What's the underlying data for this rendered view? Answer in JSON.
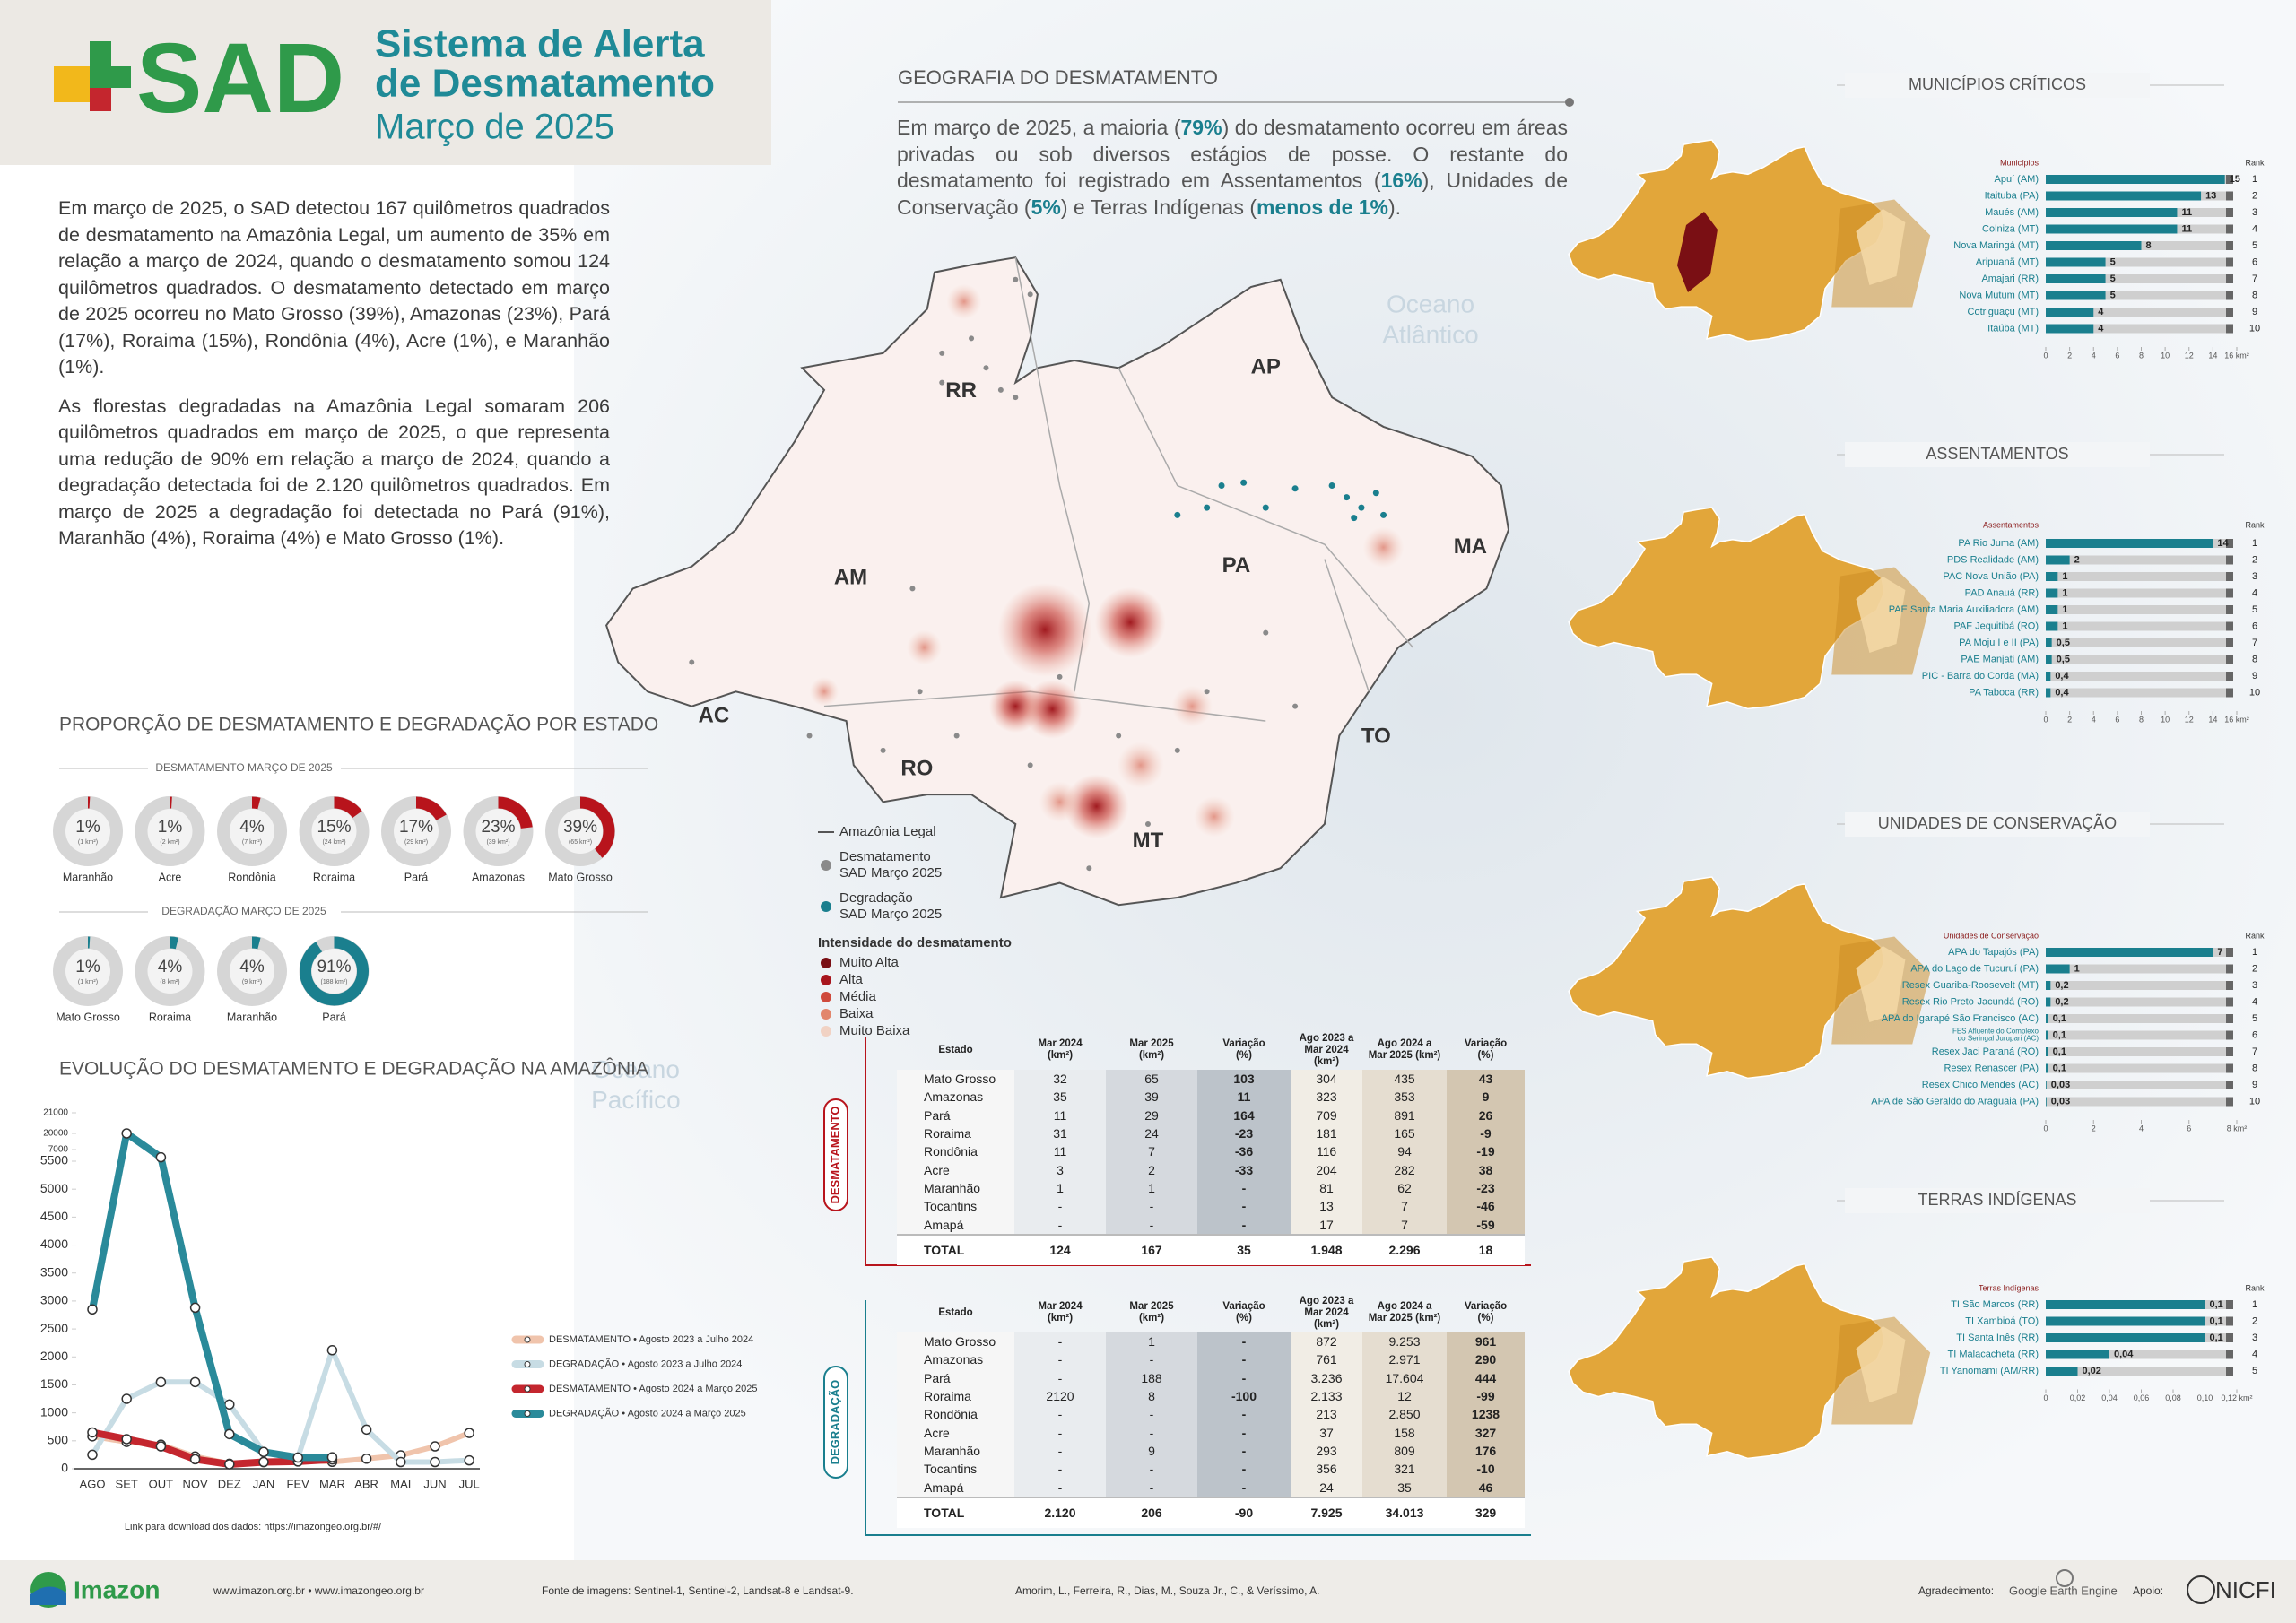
{
  "header": {
    "logo": "SAD",
    "title": [
      "Sistema de Alerta",
      "de Desmatamento"
    ],
    "subtitle": "Março de 2025"
  },
  "intro": [
    "Em março de 2025, o SAD detectou 167 quilômetros quadrados de desmatamento na Amazônia Legal, um aumento de 35% em relação a março de 2024, quando o desmatamento somou 124 quilômetros quadrados. O desmatamento detectado em março de 2025 ocorreu no Mato Grosso (39%), Amazonas (23%), Pará (17%), Roraima (15%), Rondônia (4%), Acre (1%), e Maranhão (1%).",
    "As florestas degradadas na Amazônia Legal somaram 206 quilômetros quadrados em março de 2025, o que representa uma redução de 90% em relação a março de 2024, quando a degradação detectada foi de 2.120 quilômetros quadrados. Em março de 2025 a degradação foi detectada no Pará (91%), Maranhão (4%), Roraima (4%) e Mato Grosso (1%)."
  ],
  "geography": {
    "title": "GEOGRAFIA DO DESMATAMENTO",
    "runs": [
      {
        "text": "Em março de 2025, a maioria (",
        "strong": false
      },
      {
        "text": "79%",
        "strong": true
      },
      {
        "text": ") do desmatamento ocorreu em áreas privadas ou sob diversos estágios de posse. O restante do desmatamento foi registrado em Assentamentos (",
        "strong": false
      },
      {
        "text": "16%",
        "strong": true
      },
      {
        "text": "), Unidades de Conservação (",
        "strong": false
      },
      {
        "text": "5%",
        "strong": true
      },
      {
        "text": ") e Terras Indígenas (",
        "strong": false
      },
      {
        "text": "menos de 1%",
        "strong": true
      },
      {
        "text": ").",
        "strong": false
      }
    ]
  },
  "map": {
    "states": [
      "RR",
      "AP",
      "AM",
      "PA",
      "MA",
      "AC",
      "RO",
      "TO",
      "MT"
    ],
    "oceans": [
      [
        "Oceano",
        "Atlântico"
      ],
      [
        "Oceano",
        "Pacífico"
      ]
    ],
    "layers": [
      {
        "label": [
          "Amazônia Legal"
        ],
        "symbol": "line",
        "color": "#555555"
      },
      {
        "label": [
          "Desmatamento",
          "SAD Março 2025"
        ],
        "symbol": "dot",
        "color": "#8a8a8a"
      },
      {
        "label": [
          "Degradação",
          "SAD Março 2025"
        ],
        "symbol": "dot",
        "color": "#1a7f8e"
      }
    ],
    "intensity_title": "Intensidade do desmatamento",
    "intensity": [
      {
        "label": "Muito Alta",
        "color": "#7a0f14"
      },
      {
        "label": "Alta",
        "color": "#a8161d"
      },
      {
        "label": "Média",
        "color": "#cf4a3c"
      },
      {
        "label": "Baixa",
        "color": "#e2866c"
      },
      {
        "label": "Muito Baixa",
        "color": "#f1d2c4"
      }
    ]
  },
  "proportion": {
    "title": "PROPORÇÃO DE DESMATAMENTO E DEGRADAÇÃO POR ESTADO",
    "groups": [
      {
        "title": "DESMATAMENTO MARÇO DE 2025",
        "color": "#b8141c",
        "states": [
          "Maranhão",
          "Acre",
          "Rondônia",
          "Roraima",
          "Pará",
          "Amazonas",
          "Mato Grosso"
        ],
        "values": [
          1,
          1,
          4,
          15,
          17,
          23,
          39
        ],
        "value_labels": [
          "1%",
          "1%",
          "4%",
          "15%",
          "17%",
          "23%",
          "39%"
        ],
        "area_labels": [
          "(1 km²)",
          "(2 km²)",
          "(7 km²)",
          "(24 km²)",
          "(29 km²)",
          "(39 km²)",
          "(65 km²)"
        ]
      },
      {
        "title": "DEGRADAÇÃO MARÇO DE 2025",
        "color": "#1a7f8e",
        "states": [
          "Mato Grosso",
          "Roraima",
          "Maranhão",
          "Pará"
        ],
        "values": [
          1,
          4,
          4,
          91
        ],
        "value_labels": [
          "1%",
          "4%",
          "4%",
          "91%"
        ],
        "area_labels": [
          "(1 km²)",
          "(8 km²)",
          "(9 km²)",
          "(188 km²)"
        ]
      }
    ]
  },
  "chart_data": {
    "type": "line",
    "title": "EVOLUÇÃO DO DESMATAMENTO E DEGRADAÇÃO NA AMAZÔNIA",
    "categories": [
      "AGO",
      "SET",
      "OUT",
      "NOV",
      "DEZ",
      "JAN",
      "FEV",
      "MAR",
      "ABR",
      "MAI",
      "JUN",
      "JUL"
    ],
    "series": [
      {
        "name": "DESMATAMENTO • Agosto 2023 a Julho 2024",
        "color": "#f0c4ac",
        "values": [
          580,
          480,
          430,
          220,
          90,
          120,
          160,
          124,
          180,
          240,
          400,
          640
        ]
      },
      {
        "name": "DEGRADAÇÃO • Agosto 2023 a Julho 2024",
        "color": "#c7dce4",
        "values": [
          250,
          1250,
          1550,
          1550,
          1150,
          300,
          200,
          2120,
          700,
          120,
          120,
          150
        ]
      },
      {
        "name": "DESMATAMENTO • Agosto 2024 a Março 2025",
        "color": "#c4262e",
        "values": [
          650,
          530,
          400,
          170,
          80,
          120,
          130,
          167,
          null,
          null,
          null,
          null
        ]
      },
      {
        "name": "DEGRADAÇÃO • Agosto 2024 a Março 2025",
        "color": "#2a8a9a",
        "values": [
          2850,
          20000,
          6000,
          2880,
          620,
          300,
          200,
          206,
          null,
          null,
          null,
          null
        ]
      }
    ],
    "ylim": [
      0,
      21000
    ],
    "yticks": [
      0,
      500,
      1000,
      1500,
      2000,
      2500,
      3000,
      3500,
      4000,
      4500,
      5000,
      5500,
      7000,
      20000,
      21000
    ],
    "grid": false,
    "data_link": "Link para download dos dados: https://imazongeo.org.br/#/"
  },
  "tables": {
    "columns": [
      "Estado",
      "Mar 2024\n(km²)",
      "Mar 2025\n(km²)",
      "Variação\n(%)",
      "Ago 2023 a\nMar 2024 (km²)",
      "Ago 2024 a\nMar 2025 (km²)",
      "Variação\n(%)"
    ],
    "desmatamento": {
      "label": "DESMATAMENTO",
      "color": "#b8141c",
      "rows": [
        [
          "Mato Grosso",
          "32",
          "65",
          "103",
          "304",
          "435",
          "43"
        ],
        [
          "Amazonas",
          "35",
          "39",
          "11",
          "323",
          "353",
          "9"
        ],
        [
          "Pará",
          "11",
          "29",
          "164",
          "709",
          "891",
          "26"
        ],
        [
          "Roraima",
          "31",
          "24",
          "-23",
          "181",
          "165",
          "-9"
        ],
        [
          "Rondônia",
          "11",
          "7",
          "-36",
          "116",
          "94",
          "-19"
        ],
        [
          "Acre",
          "3",
          "2",
          "-33",
          "204",
          "282",
          "38"
        ],
        [
          "Maranhão",
          "1",
          "1",
          "-",
          "81",
          "62",
          "-23"
        ],
        [
          "Tocantins",
          "-",
          "-",
          "-",
          "13",
          "7",
          "-46"
        ],
        [
          "Amapá",
          "-",
          "-",
          "-",
          "17",
          "7",
          "-59"
        ],
        [
          "TOTAL",
          "124",
          "167",
          "35",
          "1.948",
          "2.296",
          "18"
        ]
      ]
    },
    "degradacao": {
      "label": "DEGRADAÇÃO",
      "color": "#1a7f8e",
      "rows": [
        [
          "Mato Grosso",
          "-",
          "1",
          "-",
          "872",
          "9.253",
          "961"
        ],
        [
          "Amazonas",
          "-",
          "-",
          "-",
          "761",
          "2.971",
          "290"
        ],
        [
          "Pará",
          "-",
          "188",
          "-",
          "3.236",
          "17.604",
          "444"
        ],
        [
          "Roraima",
          "2120",
          "8",
          "-100",
          "2.133",
          "12",
          "-99"
        ],
        [
          "Rondônia",
          "-",
          "-",
          "-",
          "213",
          "2.850",
          "1238"
        ],
        [
          "Acre",
          "-",
          "-",
          "-",
          "37",
          "158",
          "327"
        ],
        [
          "Maranhão",
          "-",
          "9",
          "-",
          "293",
          "809",
          "176"
        ],
        [
          "Tocantins",
          "-",
          "-",
          "-",
          "356",
          "321",
          "-10"
        ],
        [
          "Amapá",
          "-",
          "-",
          "-",
          "24",
          "35",
          "46"
        ],
        [
          "TOTAL",
          "2.120",
          "206",
          "-90",
          "7.925",
          "34.013",
          "329"
        ]
      ]
    }
  },
  "rankings": [
    {
      "title": "MUNICÍPIOS CRÍTICOS",
      "column": "Municípios",
      "rank_label": "Rank",
      "color": "#1a7f8e",
      "names": [
        "Apuí (AM)",
        "Itaituba (PA)",
        "Maués (AM)",
        "Colniza (MT)",
        "Nova Maringá (MT)",
        "Aripuanã (MT)",
        "Amajari (RR)",
        "Nova Mutum (MT)",
        "Cotriguaçu (MT)",
        "Itaúba (MT)"
      ],
      "values": [
        15,
        13,
        11,
        11,
        8,
        5,
        5,
        5,
        4,
        4
      ],
      "ranks": [
        1,
        2,
        3,
        4,
        5,
        6,
        7,
        8,
        9,
        10
      ],
      "xlim": [
        0,
        16
      ],
      "xticks": [
        0,
        2,
        4,
        6,
        8,
        10,
        12,
        14,
        {
          "value": 16,
          "label": "16 km²"
        }
      ]
    },
    {
      "title": "ASSENTAMENTOS",
      "column": "Assentamentos",
      "rank_label": "Rank",
      "color": "#1a7f8e",
      "names": [
        "PA Rio Juma (AM)",
        "PDS Realidade (AM)",
        "PAC Nova União (PA)",
        "PAD Anauá (RR)",
        "PAE Santa Maria Auxiliadora (AM)",
        "PAF Jequitibá (RO)",
        "PA Moju I e II (PA)",
        "PAE Manjati (AM)",
        "PIC - Barra do Corda (MA)",
        "PA Taboca (RR)"
      ],
      "values": [
        14,
        2,
        1,
        1,
        1,
        1,
        0.5,
        0.5,
        0.4,
        0.4
      ],
      "value_labels": [
        "14",
        "2",
        "1",
        "1",
        "1",
        "1",
        "0,5",
        "0,5",
        "0,4",
        "0,4"
      ],
      "ranks": [
        1,
        2,
        3,
        4,
        5,
        6,
        7,
        8,
        9,
        10
      ],
      "xlim": [
        0,
        16
      ],
      "xticks": [
        0,
        2,
        4,
        6,
        8,
        10,
        12,
        14,
        {
          "value": 16,
          "label": "16 km²"
        }
      ]
    },
    {
      "title": "UNIDADES DE CONSERVAÇÃO",
      "column": "Unidades de Conservação",
      "rank_label": "Rank",
      "color": "#1a7f8e",
      "names": [
        "APA do Tapajós (PA)",
        "APA do Lago de Tucuruí (PA)",
        "Resex Guariba-Roosevelt (MT)",
        "Resex Rio Preto-Jacundá (RO)",
        "APA do Igarapé São Francisco (AC)",
        "FES Afluente do Complexo\ndo Seringal Jurupari (AC)",
        "Resex Jaci Paraná (RO)",
        "Resex Renascer (PA)",
        "Resex Chico Mendes (AC)",
        "APA de São Geraldo do Araguaia (PA)"
      ],
      "values": [
        7,
        1,
        0.2,
        0.2,
        0.1,
        0.1,
        0.1,
        0.1,
        0.03,
        0.03
      ],
      "value_labels": [
        "7",
        "1",
        "0,2",
        "0,2",
        "0,1",
        "0,1",
        "0,1",
        "0,1",
        "0,03",
        "0,03"
      ],
      "ranks": [
        1,
        2,
        3,
        4,
        5,
        6,
        7,
        8,
        9,
        10
      ],
      "xlim": [
        0,
        8
      ],
      "xticks": [
        0,
        2,
        4,
        6,
        {
          "value": 8,
          "label": "8 km²"
        }
      ]
    },
    {
      "title": "TERRAS INDÍGENAS",
      "column": "Terras Indígenas",
      "rank_label": "Rank",
      "color": "#1a7f8e",
      "names": [
        "TI São Marcos (RR)",
        "TI Xambioá (TO)",
        "TI Santa Inês (RR)",
        "TI Malacacheta (RR)",
        "TI Yanomami (AM/RR)"
      ],
      "values": [
        0.1,
        0.1,
        0.1,
        0.04,
        0.02
      ],
      "value_labels": [
        "0,1",
        "0,1",
        "0,1",
        "0,04",
        "0,02"
      ],
      "ranks": [
        1,
        2,
        3,
        4,
        5
      ],
      "xlim": [
        0,
        0.12
      ],
      "xticks": [
        0,
        {
          "value": 0.02,
          "label": "0,02"
        },
        {
          "value": 0.04,
          "label": "0,04"
        },
        {
          "value": 0.06,
          "label": "0,06"
        },
        {
          "value": 0.08,
          "label": "0,08"
        },
        {
          "value": 0.1,
          "label": "0,10"
        },
        {
          "value": 0.12,
          "label": "0,12 km²"
        }
      ]
    }
  ],
  "footer": {
    "org": "Imazon",
    "sites": "www.imazon.org.br • www.imazongeo.org.br",
    "source": "Fonte de imagens: Sentinel-1, Sentinel-2, Landsat-8 e Landsat-9.",
    "authors": "Amorim, L., Ferreira, R., Dias, M., Souza Jr., C., & Veríssimo, A.",
    "thanks": "Agradecimento:",
    "partner": "Google Earth Engine",
    "support": "Apoio:",
    "sponsor": "NICFI"
  }
}
